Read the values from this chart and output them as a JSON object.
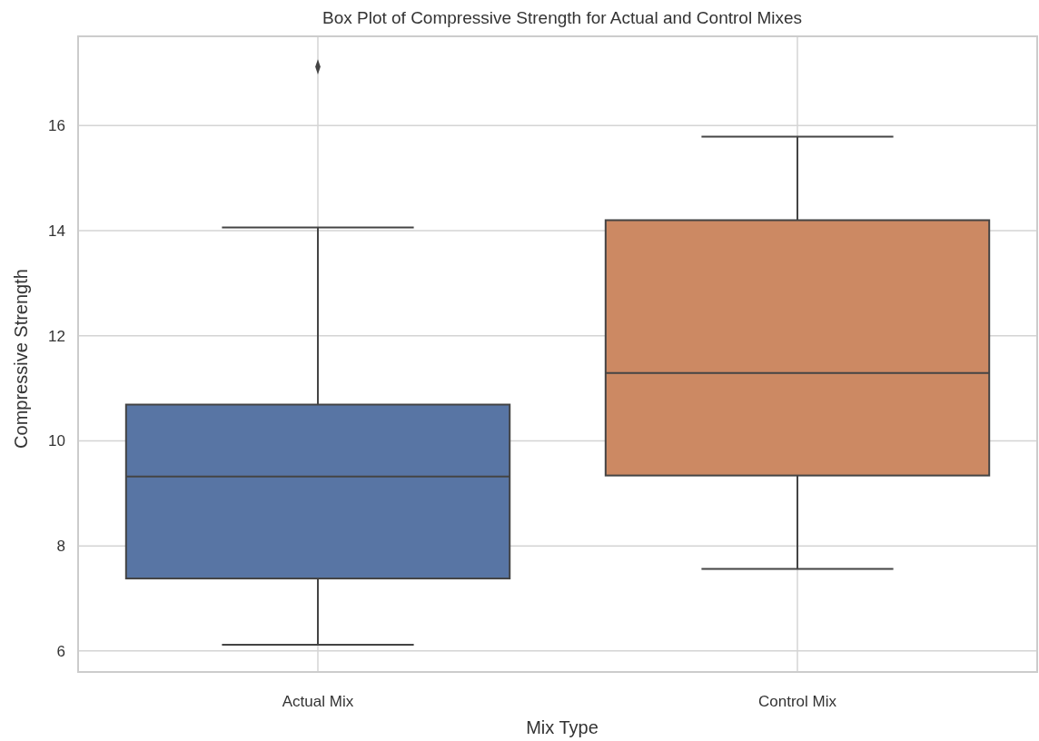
{
  "chart_data": {
    "type": "box",
    "title": "Box Plot of Compressive Strength for Actual and Control Mixes",
    "xlabel": "Mix Type",
    "ylabel": "Compressive Strength",
    "categories": [
      "Actual Mix",
      "Control Mix"
    ],
    "colors": [
      "#5875a4",
      "#cc8963"
    ],
    "boxes": [
      {
        "low": 6.12,
        "q1": 7.38,
        "median": 9.32,
        "q3": 10.69,
        "high": 14.06,
        "outliers": [
          17.12
        ]
      },
      {
        "low": 7.56,
        "q1": 9.34,
        "median": 11.29,
        "q3": 14.2,
        "high": 15.79
      }
    ],
    "ylim": [
      5.6,
      17.7
    ],
    "yticks": [
      6,
      8,
      10,
      12,
      14,
      16
    ],
    "grid": true,
    "marker": "diamond"
  }
}
